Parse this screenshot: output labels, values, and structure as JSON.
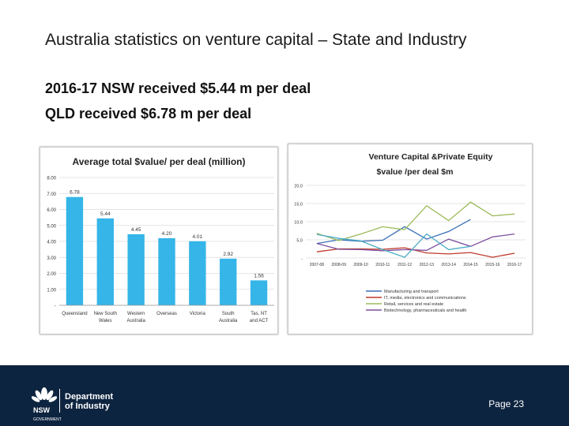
{
  "slide": {
    "title": "Australia statistics on venture capital – State and Industry",
    "line1": "2016-17 NSW received $5.44 m per deal",
    "line2": "QLD received $6.78 m per deal"
  },
  "footer": {
    "logo_text": "NSW",
    "logo_subtext": "GOVERNMENT",
    "dept_line1": "Department",
    "dept_line2": "of Industry",
    "page": "Page 23"
  },
  "colors": {
    "footer_bg": "#0d2440",
    "bar": "#35b5e8",
    "manufacturing": "#3a6fb5",
    "it": "#c0392b",
    "retail": "#9bbb59",
    "biotech": "#7b4f9e"
  },
  "chart_data": [
    {
      "type": "bar",
      "title": "Average total $value/ per deal (million)",
      "categories": [
        "Queensland",
        "New South Wales",
        "Western Australia",
        "Overseas",
        "Victoria",
        "South Australia",
        "Tas, NT and ACT"
      ],
      "values": [
        6.78,
        5.44,
        4.45,
        4.2,
        4.01,
        2.92,
        1.56
      ],
      "value_labels": [
        "6.78",
        "5.44",
        "4.45",
        "4.20",
        "4.01",
        "2.92",
        "1.56"
      ],
      "yticks": [
        "-",
        "1.00",
        "2.00",
        "3.00",
        "4.00",
        "5.00",
        "6.00",
        "7.00",
        "8.00"
      ],
      "ylim": [
        0,
        8
      ],
      "grid": true,
      "legend": "none"
    },
    {
      "type": "line",
      "title": "Venture Capital &Private Equity",
      "subtitle": "$value /per deal $m",
      "x": [
        "2007-08",
        "2008-09",
        "2009-10",
        "2010-11",
        "2011-12",
        "2012-13",
        "2013-14",
        "2014-15",
        "2015-16",
        "2016-17"
      ],
      "yticks": [
        "-",
        "5.0",
        "10.0",
        "15.0",
        "20.0"
      ],
      "ylim": [
        0,
        20
      ],
      "grid": true,
      "legend": "bottom",
      "series": [
        {
          "name": "Manufacturing and transport",
          "values": [
            4.0,
            5.0,
            4.6,
            4.9,
            8.6,
            5.2,
            7.3,
            10.6,
            null,
            null
          ]
        },
        {
          "name": "IT, media, electronics and communications",
          "values": [
            1.7,
            2.5,
            2.5,
            2.4,
            2.8,
            1.4,
            1.1,
            1.5,
            0.2,
            1.3
          ]
        },
        {
          "name": "Retail, services and real estate",
          "values": [
            6.8,
            4.8,
            6.6,
            8.6,
            7.8,
            14.4,
            10.3,
            15.4,
            11.6,
            12.1
          ]
        },
        {
          "name": "Biotechnology, pharmaceuticals and health",
          "values": [
            4.0,
            2.4,
            2.3,
            2.0,
            2.3,
            2.1,
            5.2,
            3.2,
            5.8,
            6.6
          ]
        },
        {
          "name": "",
          "values": [
            6.5,
            5.4,
            4.7,
            2.3,
            0.2,
            6.6,
            2.3,
            3.2,
            null,
            null
          ]
        }
      ]
    }
  ]
}
